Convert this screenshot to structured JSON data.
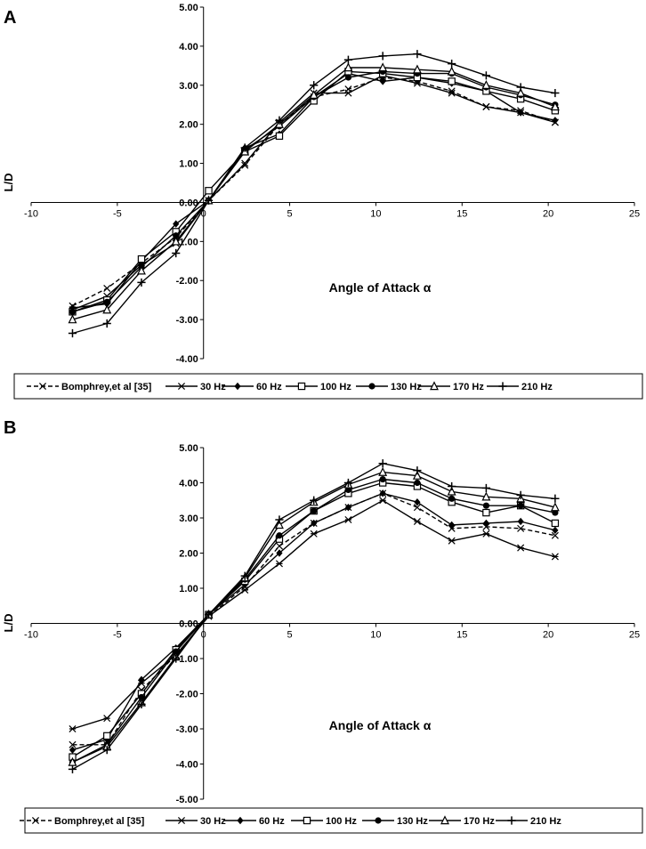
{
  "chart_data": [
    {
      "panel": "A",
      "type": "line",
      "title": "",
      "xlabel": "Angle of Attack α",
      "ylabel": "L/D",
      "xlim": [
        -10,
        25
      ],
      "ylim": [
        -4,
        5
      ],
      "xticks": [
        -10,
        -5,
        0,
        5,
        10,
        15,
        20,
        25
      ],
      "yticks": [
        -4,
        -3,
        -2,
        -1,
        0,
        1,
        2,
        3,
        4,
        5
      ],
      "ytick_labels": [
        "-4.00",
        "-3.00",
        "-2.00",
        "-1.00",
        "0.00",
        "1.00",
        "2.00",
        "3.00",
        "4.00",
        "5.00"
      ],
      "x": [
        -7.6,
        -5.6,
        -3.6,
        -1.6,
        0.3,
        2.4,
        4.4,
        6.4,
        8.4,
        10.4,
        12.4,
        14.4,
        16.4,
        18.4,
        20.4
      ],
      "series": [
        {
          "name": "Bomphrey,et al [35]",
          "marker": "x",
          "dashed": true,
          "values": [
            -2.65,
            -2.2,
            -1.55,
            -0.9,
            0.05,
            0.95,
            2.0,
            2.7,
            2.9,
            3.2,
            3.1,
            2.85,
            2.45,
            2.35,
            2.05
          ]
        },
        {
          "name": "30 Hz",
          "marker": "x",
          "dashed": false,
          "values": [
            -2.75,
            -2.4,
            -1.6,
            -1.05,
            0.05,
            1.0,
            2.05,
            2.8,
            2.8,
            3.25,
            3.05,
            2.8,
            2.45,
            2.3,
            2.05
          ]
        },
        {
          "name": "60 Hz",
          "marker": "diamond",
          "dashed": false,
          "values": [
            -2.7,
            -2.6,
            -1.5,
            -0.55,
            0.05,
            1.4,
            1.75,
            2.7,
            3.3,
            3.1,
            3.2,
            3.05,
            2.85,
            2.3,
            2.1
          ]
        },
        {
          "name": "100 Hz",
          "marker": "square",
          "dashed": false,
          "values": [
            -2.8,
            -2.5,
            -1.45,
            -0.75,
            0.3,
            1.3,
            1.7,
            2.6,
            3.35,
            3.3,
            3.2,
            3.1,
            2.85,
            2.65,
            2.35
          ]
        },
        {
          "name": "130 Hz",
          "marker": "circle",
          "dashed": false,
          "values": [
            -2.8,
            -2.55,
            -1.65,
            -0.85,
            0.05,
            1.35,
            1.95,
            2.7,
            3.2,
            3.35,
            3.3,
            3.3,
            2.95,
            2.75,
            2.5
          ]
        },
        {
          "name": "170 Hz",
          "marker": "triangle",
          "dashed": false,
          "values": [
            -3.0,
            -2.75,
            -1.75,
            -1.0,
            0.05,
            1.3,
            2.0,
            2.75,
            3.45,
            3.45,
            3.4,
            3.35,
            3.0,
            2.8,
            2.45
          ]
        },
        {
          "name": "210 Hz",
          "marker": "plus",
          "dashed": false,
          "values": [
            -3.35,
            -3.1,
            -2.05,
            -1.3,
            0.05,
            1.4,
            2.1,
            3.0,
            3.65,
            3.75,
            3.8,
            3.55,
            3.25,
            2.95,
            2.8
          ]
        }
      ]
    },
    {
      "panel": "B",
      "type": "line",
      "title": "",
      "xlabel": "Angle of Attack α",
      "ylabel": "L/D",
      "xlim": [
        -10,
        25
      ],
      "ylim": [
        -5,
        5
      ],
      "xticks": [
        -10,
        -5,
        0,
        5,
        10,
        15,
        20,
        25
      ],
      "yticks": [
        -5,
        -4,
        -3,
        -2,
        -1,
        0,
        1,
        2,
        3,
        4,
        5
      ],
      "ytick_labels": [
        "-5.00",
        "-4.00",
        "-3.00",
        "-2.00",
        "-1.00",
        "0.00",
        "1.00",
        "2.00",
        "3.00",
        "4.00",
        "5.00"
      ],
      "x": [
        -7.6,
        -5.6,
        -3.6,
        -1.6,
        0.3,
        2.4,
        4.4,
        6.4,
        8.4,
        10.4,
        12.4,
        14.4,
        16.4,
        18.4,
        20.4
      ],
      "series": [
        {
          "name": "Bomphrey,et al [35]",
          "marker": "x",
          "dashed": true,
          "values": [
            -3.45,
            -3.45,
            -1.9,
            -0.9,
            0.2,
            1.05,
            2.2,
            2.85,
            3.3,
            3.7,
            3.3,
            2.7,
            2.75,
            2.7,
            2.5
          ]
        },
        {
          "name": "30 Hz",
          "marker": "star",
          "dashed": false,
          "values": [
            -3.0,
            -2.7,
            -1.7,
            -0.9,
            0.2,
            0.95,
            1.7,
            2.55,
            2.95,
            3.5,
            2.9,
            2.35,
            2.55,
            2.15,
            1.9
          ]
        },
        {
          "name": "60 Hz",
          "marker": "diamond",
          "dashed": false,
          "values": [
            -3.6,
            -3.3,
            -1.6,
            -0.7,
            0.25,
            1.1,
            2.0,
            2.85,
            3.3,
            3.7,
            3.45,
            2.8,
            2.85,
            2.9,
            2.65
          ]
        },
        {
          "name": "100 Hz",
          "marker": "square",
          "dashed": false,
          "values": [
            -3.8,
            -3.2,
            -2.0,
            -0.75,
            0.25,
            1.2,
            2.4,
            3.2,
            3.7,
            4.0,
            3.9,
            3.45,
            3.15,
            3.35,
            2.85
          ]
        },
        {
          "name": "130 Hz",
          "marker": "circle",
          "dashed": false,
          "values": [
            -3.95,
            -3.45,
            -2.1,
            -0.8,
            0.25,
            1.25,
            2.5,
            3.2,
            3.8,
            4.1,
            4.0,
            3.55,
            3.35,
            3.35,
            3.15
          ]
        },
        {
          "name": "170 Hz",
          "marker": "triangle",
          "dashed": false,
          "values": [
            -3.95,
            -3.5,
            -2.25,
            -0.95,
            0.25,
            1.3,
            2.8,
            3.45,
            3.95,
            4.3,
            4.2,
            3.75,
            3.6,
            3.55,
            3.3
          ]
        },
        {
          "name": "210 Hz",
          "marker": "plus",
          "dashed": false,
          "values": [
            -4.15,
            -3.6,
            -2.3,
            -1.0,
            0.25,
            1.35,
            2.95,
            3.5,
            4.0,
            4.55,
            4.35,
            3.9,
            3.85,
            3.65,
            3.55
          ]
        }
      ]
    }
  ]
}
